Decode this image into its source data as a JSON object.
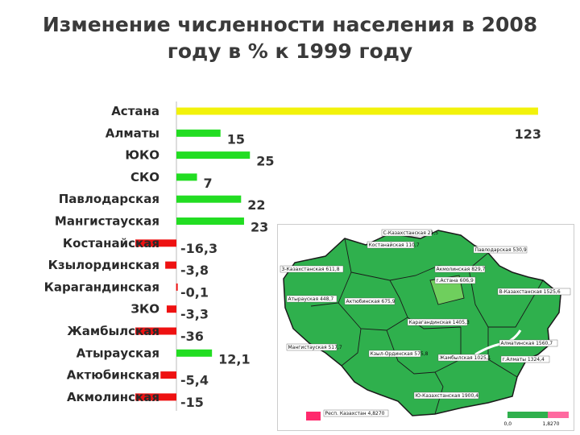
{
  "title": {
    "line1": "Изменение численности населения в 2008",
    "line2": "году в % к 1999 году"
  },
  "colors": {
    "positive": "#22dd22",
    "negative": "#ee1111",
    "highlight": "#f2f20a",
    "map_fill": "#2fb04d",
    "map_light": "#6fcf5d",
    "map_border": "#1a1a1a",
    "lake": "#ffffff"
  },
  "chart_data": {
    "type": "bar",
    "orientation": "horizontal",
    "title": "Изменение численности населения в 2008 году в % к 1999 году",
    "categories": [
      "Астана",
      "Алматы",
      "ЮКО",
      "СКО",
      "Павлодарская",
      "Мангистауская",
      "Костанайская",
      "Кзылординская",
      "Карагандинская",
      "ЗКО",
      "Жамбылская",
      "Атырауская",
      "Актюбинская",
      "Акмолинская"
    ],
    "values": [
      123,
      15,
      25,
      7,
      22,
      23,
      -16.3,
      -3.8,
      -0.1,
      -3.3,
      -36,
      12.1,
      -5.4,
      -15
    ],
    "value_labels": [
      "123",
      "15",
      "25",
      "7",
      "22",
      "23",
      "-16,3",
      "-3,8",
      "-0,1",
      "-3,3",
      "-36",
      "12,1",
      "-5,4",
      "-15"
    ],
    "highlight_category": "Астана",
    "grid": false,
    "legend": "none"
  },
  "map": {
    "labels": [
      "С-Казахстанская 21,5",
      "Костанайская 110,7",
      "Павлодарская 530,9",
      "З-Казахстанская 611,8",
      "Акмолинская 829,7",
      "г.Астана 606,9",
      "Атырауская 448,7",
      "Актюбинская 675,9",
      "В-Казахстанская 1525,6",
      "Карагандинская 1405,3",
      "Мангистауская 517,7",
      "Кзыл-Ординская 575,8",
      "Жамбылская 1025,1",
      "Алматинская 1560,7",
      "г.Алматы 1324,4",
      "Ю-Казахстанская 1900,4",
      "Респ. Казахстан 4,8270",
      "0,0",
      "1,8270"
    ]
  }
}
